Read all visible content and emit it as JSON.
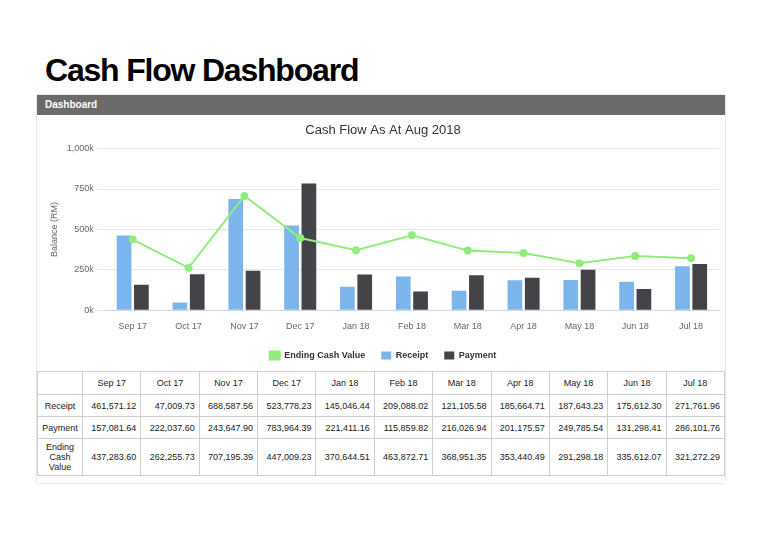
{
  "header": {
    "title": "Cash Flow Dashboard",
    "panel": "Dashboard"
  },
  "chart_data": {
    "type": "bar",
    "title": "Cash Flow As At Aug 2018",
    "y_label": "Balance (RM)",
    "categories": [
      "Sep 17",
      "Oct 17",
      "Nov 17",
      "Dec 17",
      "Jan 18",
      "Feb 18",
      "Mar 18",
      "Apr 18",
      "May 18",
      "Jun 18",
      "Jul 18"
    ],
    "series": [
      {
        "name": "Receipt",
        "type": "bar",
        "color": "#7cb5ec",
        "values": [
          461571.12,
          47009.73,
          688587.56,
          523778.23,
          145046.44,
          209088.02,
          121105.58,
          185664.71,
          187643.23,
          175612.3,
          271761.96
        ]
      },
      {
        "name": "Payment",
        "type": "bar",
        "color": "#434348",
        "values": [
          157081.64,
          222037.6,
          243647.9,
          783964.39,
          221411.16,
          115859.82,
          216026.94,
          201175.57,
          249785.54,
          131298.41,
          286101.76
        ]
      },
      {
        "name": "Ending Cash Value",
        "type": "line",
        "color": "#90ed7d",
        "marker": "circle",
        "values": [
          437283.6,
          262255.73,
          707195.39,
          447009.23,
          370644.51,
          463872.71,
          368951.35,
          353440.49,
          291298.18,
          335612.07,
          321272.29
        ]
      }
    ],
    "ylim": [
      0,
      1000000
    ],
    "yticks": [
      {
        "value": 0,
        "label": "0k"
      },
      {
        "value": 250000,
        "label": "250k"
      },
      {
        "value": 500000,
        "label": "500k"
      },
      {
        "value": 750000,
        "label": "750k"
      },
      {
        "value": 1000000,
        "label": "1,000k"
      }
    ],
    "grid": true,
    "legend": "bottom"
  },
  "table": {
    "header": [
      "Sep 17",
      "Oct 17",
      "Nov 17",
      "Dec 17",
      "Jan 18",
      "Feb 18",
      "Mar 18",
      "Apr 18",
      "May 18",
      "Jun 18",
      "Jul 18"
    ],
    "rows": [
      {
        "label": "Receipt",
        "cells": [
          "461,571.12",
          "47,009.73",
          "688,587.56",
          "523,778.23",
          "145,046.44",
          "209,088.02",
          "121,105.58",
          "185,664.71",
          "187,643.23",
          "175,612.30",
          "271,761.96"
        ]
      },
      {
        "label": "Payment",
        "cells": [
          "157,081.64",
          "222,037.60",
          "243,647.90",
          "783,964.39",
          "221,411.16",
          "115,859.82",
          "216,026.94",
          "201,175.57",
          "249,785.54",
          "131,298.41",
          "286,101.76"
        ]
      },
      {
        "label": "Ending Cash Value",
        "cells": [
          "437,283.60",
          "262,255.73",
          "707,195.39",
          "447,009.23",
          "370,644.51",
          "463,872.71",
          "368,951.35",
          "353,440.49",
          "291,298.18",
          "335,612.07",
          "321,272.29"
        ]
      }
    ]
  }
}
